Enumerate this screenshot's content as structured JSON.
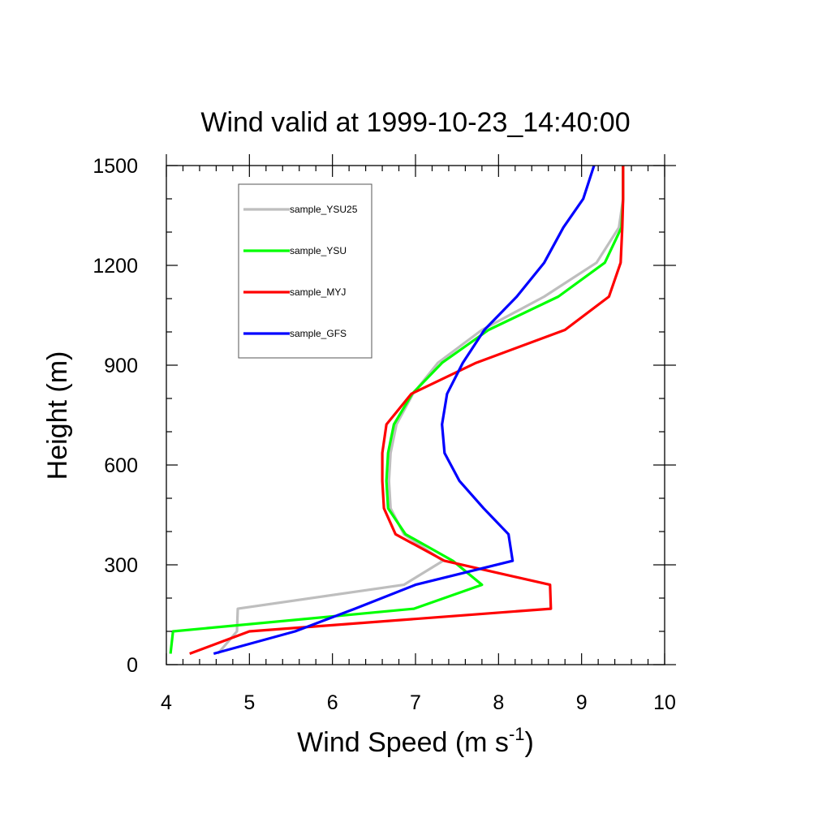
{
  "chart_data": {
    "type": "line",
    "title": "Wind valid at 1999-10-23_14:40:00",
    "xlabel": "Wind Speed (m s",
    "xlabel_sup": "-1",
    "xlabel_close": ")",
    "ylabel": "Height (m)",
    "xlim": [
      4,
      10
    ],
    "ylim": [
      0,
      1500
    ],
    "xticks": [
      4,
      5,
      6,
      7,
      8,
      9,
      10
    ],
    "yticks": [
      0,
      300,
      600,
      900,
      1200,
      1500
    ],
    "legend_position": "top-left",
    "series": [
      {
        "name": "sample_YSU25",
        "color": "#bebebe",
        "points": [
          [
            4.62,
            33
          ],
          [
            4.85,
            100
          ],
          [
            4.86,
            168
          ],
          [
            6.86,
            240
          ],
          [
            7.33,
            312
          ],
          [
            6.86,
            392
          ],
          [
            6.7,
            470
          ],
          [
            6.68,
            552
          ],
          [
            6.7,
            636
          ],
          [
            6.77,
            722
          ],
          [
            6.97,
            814
          ],
          [
            7.27,
            907
          ],
          [
            7.8,
            1006
          ],
          [
            8.55,
            1106
          ],
          [
            9.18,
            1208
          ],
          [
            9.45,
            1314
          ],
          [
            9.5,
            1400
          ],
          [
            9.5,
            1500
          ]
        ]
      },
      {
        "name": "sample_YSU",
        "color": "#00ff00",
        "points": [
          [
            4.05,
            33
          ],
          [
            4.08,
            100
          ],
          [
            6.98,
            168
          ],
          [
            7.8,
            240
          ],
          [
            7.45,
            312
          ],
          [
            6.88,
            392
          ],
          [
            6.67,
            470
          ],
          [
            6.65,
            552
          ],
          [
            6.67,
            636
          ],
          [
            6.74,
            722
          ],
          [
            6.96,
            814
          ],
          [
            7.32,
            907
          ],
          [
            7.88,
            1006
          ],
          [
            8.72,
            1106
          ],
          [
            9.28,
            1208
          ],
          [
            9.48,
            1314
          ],
          [
            9.5,
            1400
          ],
          [
            9.5,
            1500
          ]
        ]
      },
      {
        "name": "sample_MYJ",
        "color": "#ff0000",
        "points": [
          [
            4.28,
            33
          ],
          [
            5.0,
            100
          ],
          [
            8.63,
            168
          ],
          [
            8.62,
            240
          ],
          [
            7.35,
            312
          ],
          [
            6.76,
            392
          ],
          [
            6.62,
            470
          ],
          [
            6.6,
            552
          ],
          [
            6.6,
            636
          ],
          [
            6.65,
            722
          ],
          [
            6.95,
            814
          ],
          [
            7.73,
            907
          ],
          [
            8.8,
            1006
          ],
          [
            9.33,
            1106
          ],
          [
            9.47,
            1208
          ],
          [
            9.49,
            1314
          ],
          [
            9.5,
            1400
          ],
          [
            9.5,
            1500
          ]
        ]
      },
      {
        "name": "sample_GFS",
        "color": "#0000ff",
        "points": [
          [
            4.57,
            33
          ],
          [
            5.55,
            100
          ],
          [
            6.27,
            168
          ],
          [
            7.0,
            240
          ],
          [
            8.17,
            312
          ],
          [
            8.12,
            392
          ],
          [
            7.82,
            470
          ],
          [
            7.53,
            552
          ],
          [
            7.35,
            636
          ],
          [
            7.32,
            722
          ],
          [
            7.38,
            814
          ],
          [
            7.57,
            907
          ],
          [
            7.83,
            1006
          ],
          [
            8.22,
            1106
          ],
          [
            8.55,
            1208
          ],
          [
            8.78,
            1314
          ],
          [
            9.02,
            1400
          ],
          [
            9.15,
            1500
          ]
        ]
      }
    ]
  }
}
